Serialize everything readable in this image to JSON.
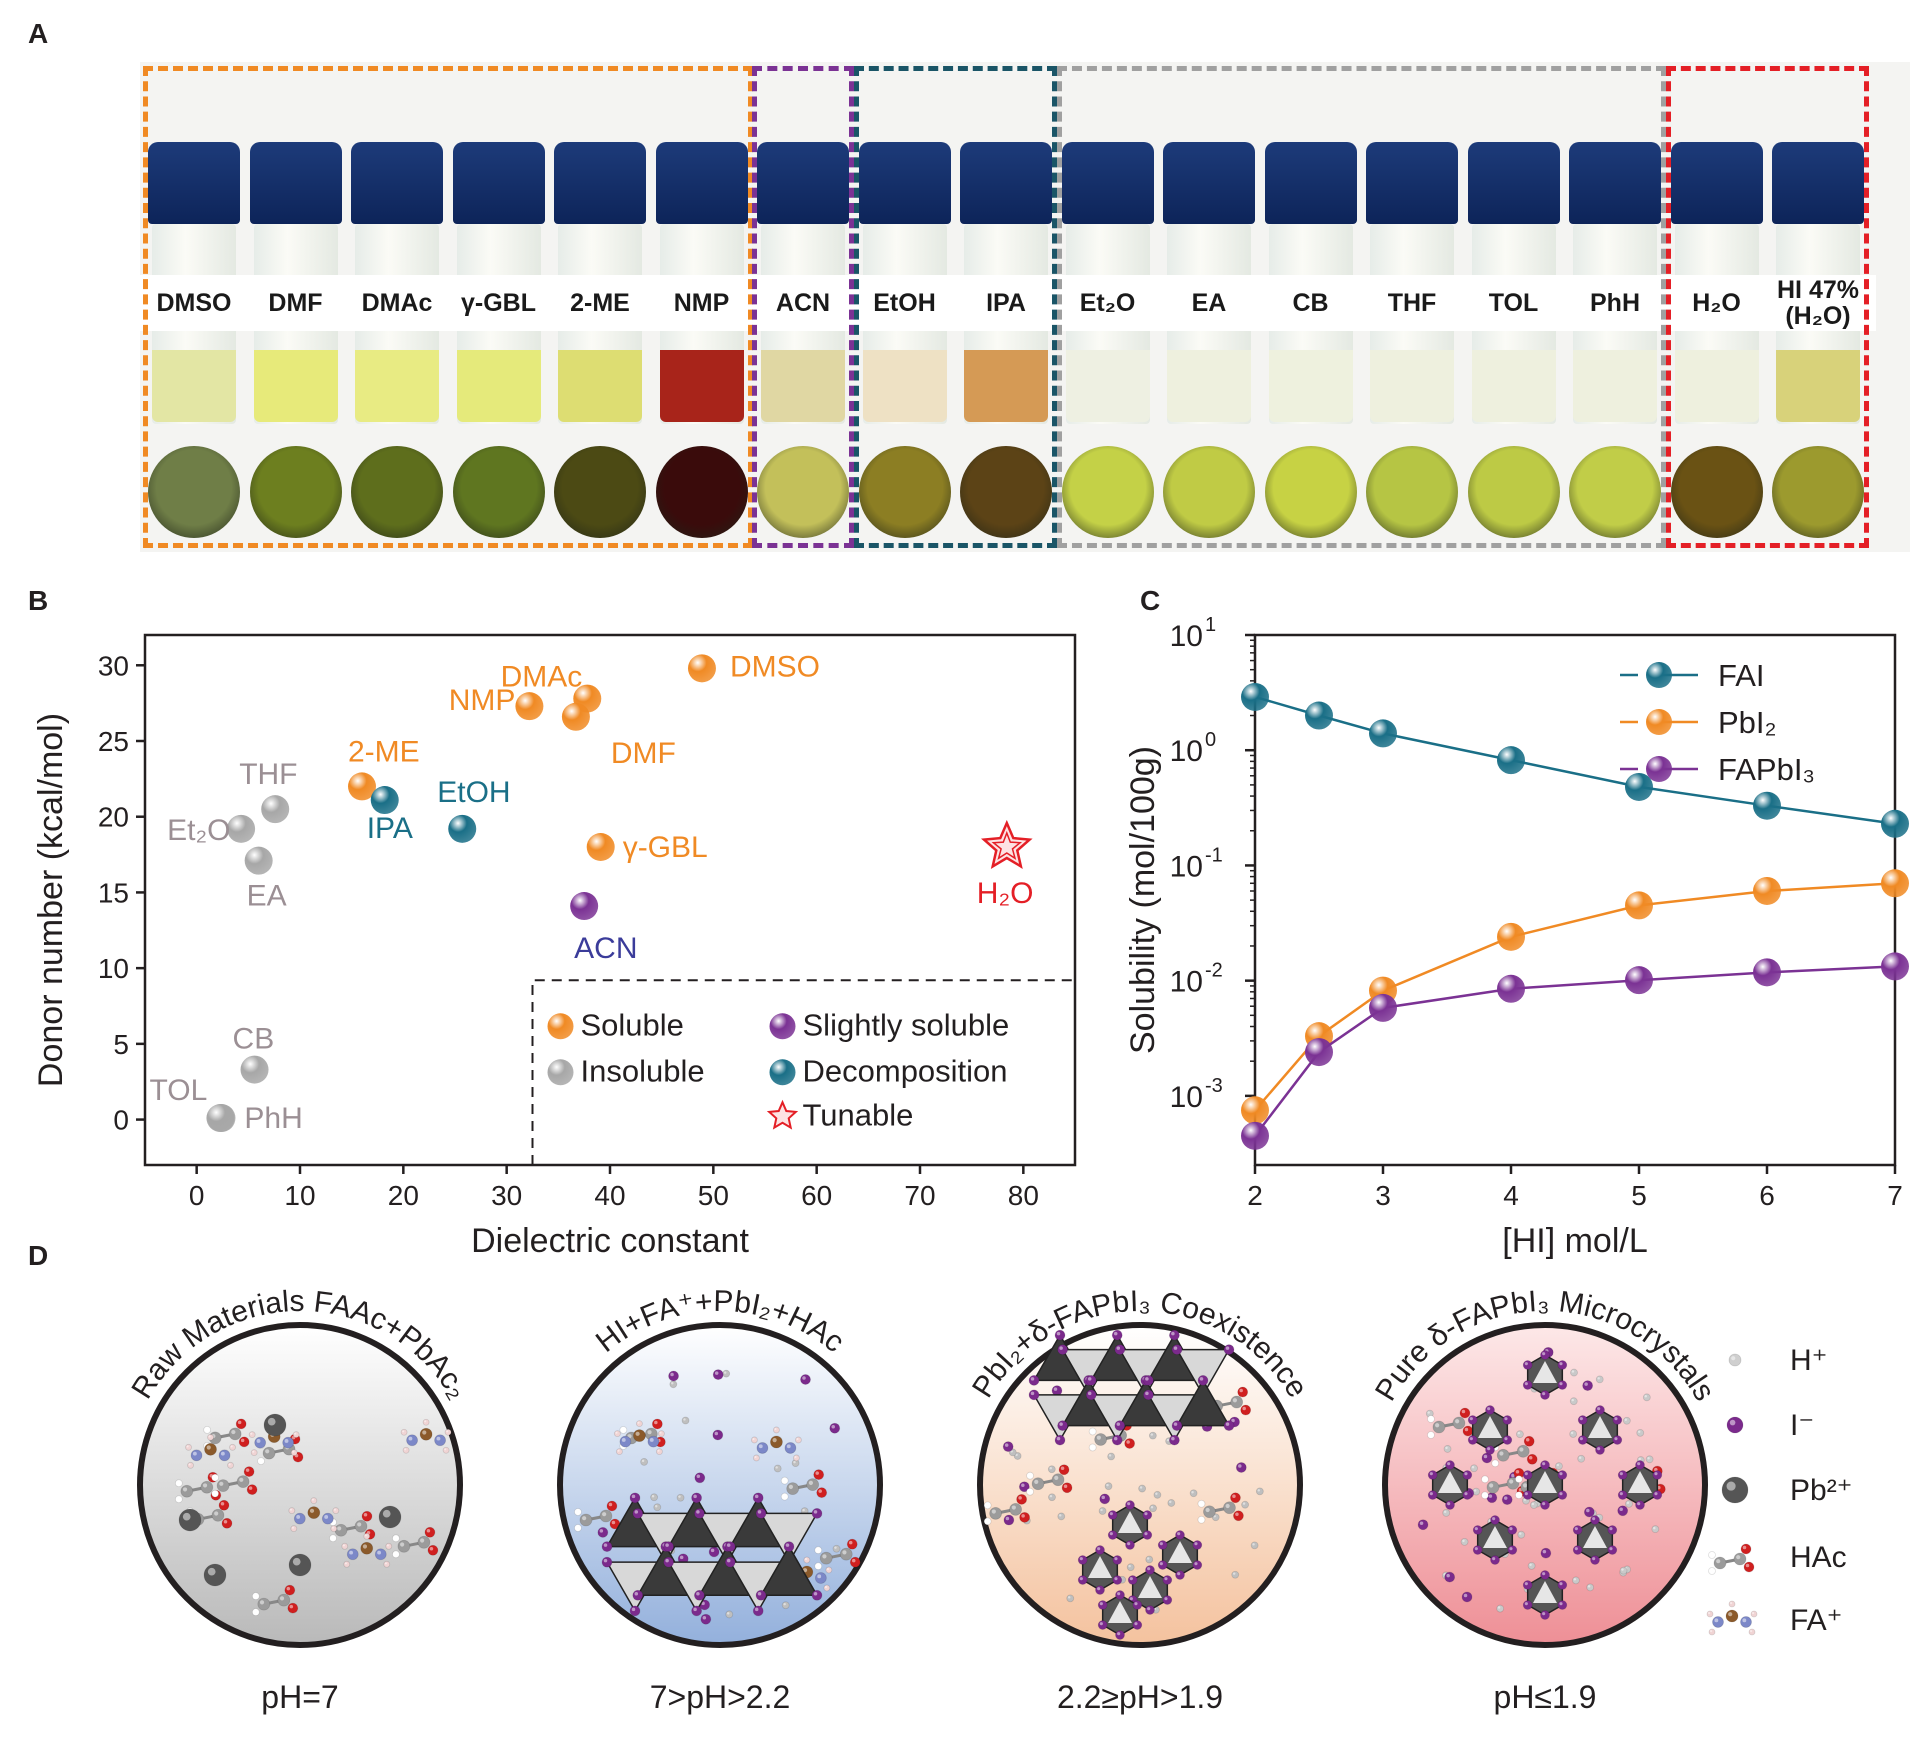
{
  "panels": {
    "a": "A",
    "b": "B",
    "c": "C",
    "d": "D"
  },
  "vials": [
    {
      "label": "DMSO",
      "liquid": "#e3e6a4",
      "disc": "#6f7e47"
    },
    {
      "label": "DMF",
      "liquid": "#e7ea7a",
      "disc": "#6d7f1f"
    },
    {
      "label": "DMAc",
      "liquid": "#e8eb83",
      "disc": "#5e6e1c"
    },
    {
      "label": "γ-GBL",
      "liquid": "#e5ea7b",
      "disc": "#5f7620"
    },
    {
      "label": "2-ME",
      "liquid": "#dddd72",
      "disc": "#4c4a14"
    },
    {
      "label": "NMP",
      "liquid": "#a8241a",
      "disc": "#3a0b0b"
    },
    {
      "label": "ACN",
      "liquid": "#e0d7a3",
      "disc": "#c3c05a"
    },
    {
      "label": "EtOH",
      "liquid": "#eee1c4",
      "disc": "#8c7e23"
    },
    {
      "label": "IPA",
      "liquid": "#d59a55",
      "disc": "#5c4316"
    },
    {
      "label": "Et₂O",
      "liquid": "#eef0e2",
      "disc": "#c4d147"
    },
    {
      "label": "EA",
      "liquid": "#eef0de",
      "disc": "#c0cb45"
    },
    {
      "label": "CB",
      "liquid": "#eef1de",
      "disc": "#c7d244"
    },
    {
      "label": "THF",
      "liquid": "#eef0de",
      "disc": "#b6c544"
    },
    {
      "label": "TOL",
      "liquid": "#eef0de",
      "disc": "#bdca45"
    },
    {
      "label": "PhH",
      "liquid": "#eef0de",
      "disc": "#c1cd48"
    },
    {
      "label": "H₂O",
      "liquid": "#eef0de",
      "disc": "#6a5214"
    },
    {
      "label": "HI 47% (H₂O)",
      "liquid": "#d8d27a",
      "disc": "#9c9a2e"
    }
  ],
  "groups": [
    {
      "name": "soluble",
      "color": "#f08a24"
    },
    {
      "name": "slightly-soluble",
      "color": "#7b3294"
    },
    {
      "name": "decomposition",
      "color": "#1a5567"
    },
    {
      "name": "insoluble",
      "color": "#a0a0a0"
    },
    {
      "name": "tunable",
      "color": "#e41f26"
    }
  ],
  "chart_b": {
    "type": "scatter",
    "xlabel": "Dielectric constant",
    "ylabel": "Donor number (kcal/mol)",
    "xlim": [
      -5,
      85
    ],
    "ylim": [
      -3,
      32
    ],
    "xticks": [
      0,
      10,
      20,
      30,
      40,
      50,
      60,
      70,
      80
    ],
    "yticks": [
      0,
      5,
      10,
      15,
      20,
      25,
      30
    ],
    "colors": {
      "soluble": "#f08a24",
      "insoluble": "#a7a7a7",
      "slightly": "#7b3294",
      "decomposition": "#1a6f87",
      "tunable": "#e41f26"
    },
    "label_colors": {
      "soluble": "#f08a24",
      "insoluble": "#9b8f94",
      "slightly": "#3b3c9a",
      "decomposition": "#1a6f87",
      "tunable": "#e41f26"
    },
    "points": [
      {
        "name": "DMSO",
        "x": 48.9,
        "y": 29.8,
        "cat": "soluble"
      },
      {
        "name": "DMAc",
        "x": 37.8,
        "y": 27.8,
        "cat": "soluble"
      },
      {
        "name": "DMF",
        "x": 36.7,
        "y": 26.6,
        "cat": "soluble"
      },
      {
        "name": "NMP",
        "x": 32.2,
        "y": 27.3,
        "cat": "soluble"
      },
      {
        "name": "2-ME",
        "x": 16.0,
        "y": 22.0,
        "cat": "soluble"
      },
      {
        "name": "γ-GBL",
        "x": 39.1,
        "y": 18.0,
        "cat": "soluble"
      },
      {
        "name": "ACN",
        "x": 37.5,
        "y": 14.1,
        "cat": "slightly"
      },
      {
        "name": "EtOH",
        "x": 25.7,
        "y": 19.2,
        "cat": "decomposition"
      },
      {
        "name": "IPA",
        "x": 18.2,
        "y": 21.1,
        "cat": "decomposition"
      },
      {
        "name": "THF",
        "x": 7.6,
        "y": 20.5,
        "cat": "insoluble"
      },
      {
        "name": "Et₂O",
        "x": 4.3,
        "y": 19.2,
        "cat": "insoluble"
      },
      {
        "name": "EA",
        "x": 6.0,
        "y": 17.1,
        "cat": "insoluble"
      },
      {
        "name": "CB",
        "x": 5.6,
        "y": 3.3,
        "cat": "insoluble"
      },
      {
        "name": "TOL",
        "x": 2.4,
        "y": 0.1,
        "cat": "insoluble"
      },
      {
        "name": "PhH",
        "x": 2.3,
        "y": 0.1,
        "cat": "insoluble"
      },
      {
        "name": "H₂O",
        "x": 78.4,
        "y": 18.0,
        "cat": "tunable"
      }
    ],
    "legend": {
      "soluble": "Soluble",
      "slightly": "Slightly soluble",
      "insoluble": "Insoluble",
      "decomposition": "Decomposition",
      "tunable": "Tunable"
    }
  },
  "chart_c": {
    "type": "line",
    "xlabel": "[HI] mol/L",
    "ylabel": "Solubility (mol/100g)",
    "yscale": "log",
    "xlim": [
      2,
      7
    ],
    "ylim_log": [
      -3.6,
      1
    ],
    "xticks": [
      2,
      3,
      4,
      5,
      6,
      7
    ],
    "ytick_base": "10",
    "ytick_exps": [
      "1",
      "0",
      "-1",
      "-2",
      "-3"
    ],
    "x": [
      2,
      2.5,
      3,
      4,
      5,
      6,
      7
    ],
    "series": [
      {
        "name": "FAI",
        "color": "#1a6f87",
        "values": [
          2.9,
          2.0,
          1.4,
          0.82,
          0.48,
          0.33,
          0.23
        ]
      },
      {
        "name": "PbI₂",
        "color": "#f08a24",
        "values": [
          0.00075,
          0.0033,
          0.0082,
          0.024,
          0.045,
          0.06,
          0.07
        ]
      },
      {
        "name": "FAPbI₃",
        "color": "#7b3294",
        "values": [
          0.00045,
          0.0024,
          0.0058,
          0.0085,
          0.0101,
          0.0118,
          0.0133
        ]
      }
    ]
  },
  "circles": [
    {
      "title": "Raw Materials  FAAc+PbAc₂",
      "ph": "pH=7",
      "top": "#ffffff",
      "bottom": "#b9b9b9"
    },
    {
      "title": "HI+FA⁺+PbI₂+HAc",
      "ph": "7>pH>2.2",
      "top": "#ffffff",
      "bottom": "#93b0dc"
    },
    {
      "title": "PbI₂+δ-FAPbI₃ Coexistence",
      "ph": "2.2≥pH>1.9",
      "top": "#ffffff",
      "bottom": "#f4c29e"
    },
    {
      "title": "Pure δ-FAPbI₃ Microcrystals",
      "ph": "pH≤1.9",
      "top": "#fde8e8",
      "bottom": "#ee8f96"
    }
  ],
  "legend_d": [
    {
      "label": "H⁺",
      "icon": "proton-icon"
    },
    {
      "label": "I⁻",
      "icon": "iodide-icon"
    },
    {
      "label": "Pb²⁺",
      "icon": "lead-icon"
    },
    {
      "label": "HAc",
      "icon": "acetic-acid-icon"
    },
    {
      "label": "FA⁺",
      "icon": "formamidinium-icon"
    }
  ]
}
